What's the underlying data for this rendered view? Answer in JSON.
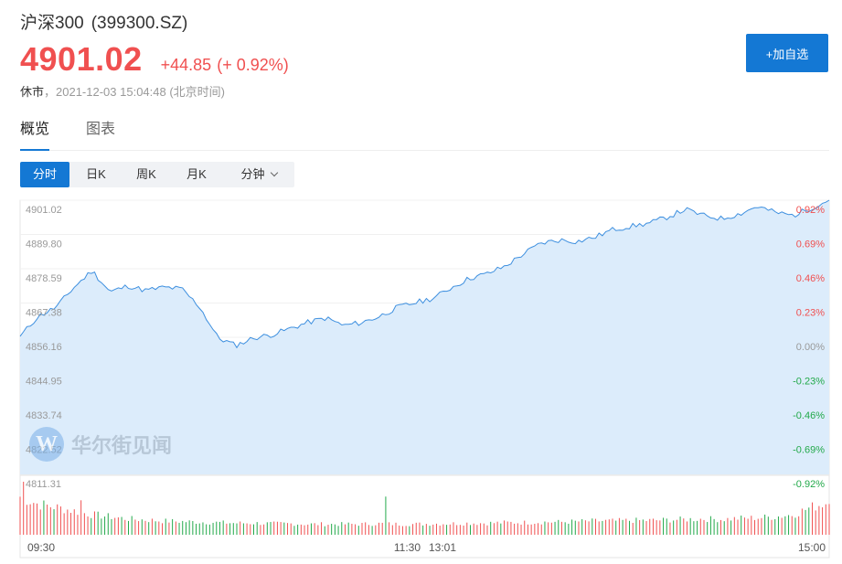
{
  "header": {
    "name": "沪深300",
    "code": "(399300.SZ)",
    "price": "4901.02",
    "change": "+44.85",
    "change_pct": "(+ 0.92%)",
    "status": "休市",
    "timestamp": "，2021-12-03 15:04:48 (北京时间)",
    "add_button": "+加自选"
  },
  "tabs": [
    {
      "label": "概览",
      "active": true
    },
    {
      "label": "图表",
      "active": false
    }
  ],
  "periods": [
    {
      "label": "分时",
      "active": true
    },
    {
      "label": "日K",
      "active": false
    },
    {
      "label": "周K",
      "active": false
    },
    {
      "label": "月K",
      "active": false
    },
    {
      "label": "分钟",
      "active": false
    }
  ],
  "watermark": {
    "logo": "W",
    "text": "华尔街见闻"
  },
  "colors": {
    "up": "#f05050",
    "down": "#22a94a",
    "accent": "#1478d4",
    "line": "#3d8fdf",
    "area": "#dcecfb"
  },
  "chart_data": {
    "type": "area",
    "previous_close": 4856.17,
    "ylim": [
      4811.31,
      4901.02
    ],
    "y_tick_labels": [
      "4901.02",
      "4889.80",
      "4878.59",
      "4867.38",
      "4856.16",
      "4844.95",
      "4833.74",
      "4822.52",
      "4811.31"
    ],
    "pct_tick_labels": [
      "0.92%",
      "0.69%",
      "0.46%",
      "0.23%",
      "0.00%",
      "-0.23%",
      "-0.46%",
      "-0.69%",
      "-0.92%"
    ],
    "x_tick_labels": [
      "09:30",
      "11:30",
      "13:01",
      "15:00"
    ],
    "price_series": [
      4856.5,
      4863.0,
      4866.0,
      4872.5,
      4878.0,
      4871.0,
      4873.0,
      4871.5,
      4872.5,
      4872.0,
      4866.0,
      4856.0,
      4853.5,
      4856.0,
      4857.0,
      4859.0,
      4861.0,
      4862.5,
      4860.0,
      4861.0,
      4863.0,
      4866.0,
      4867.5,
      4869.0,
      4872.5,
      4875.5,
      4877.0,
      4879.5,
      4883.5,
      4887.0,
      4888.0,
      4887.5,
      4889.0,
      4891.5,
      4892.5,
      4893.5,
      4895.5,
      4898.0,
      4896.0,
      4895.0,
      4896.5,
      4899.0,
      4897.0,
      4896.0,
      4898.5,
      4901.02
    ],
    "volume_series": [
      0.72,
      0.58,
      0.52,
      0.45,
      0.38,
      0.34,
      0.3,
      0.28,
      0.26,
      0.25,
      0.24,
      0.23,
      0.22,
      0.22,
      0.21,
      0.21,
      0.2,
      0.2,
      0.2,
      0.2,
      0.21,
      0.2,
      0.2,
      0.21,
      0.21,
      0.22,
      0.22,
      0.23,
      0.23,
      0.24,
      0.24,
      0.25,
      0.26,
      0.26,
      0.27,
      0.27,
      0.28,
      0.29,
      0.3,
      0.29,
      0.31,
      0.32,
      0.34,
      0.38,
      0.52,
      0.62
    ],
    "volume_spikes": [
      {
        "index": 1,
        "value": 1.0
      },
      {
        "index": 18,
        "value": 0.65
      },
      {
        "index": 108,
        "value": 0.72
      },
      {
        "index": 239,
        "value": 0.58
      }
    ]
  }
}
